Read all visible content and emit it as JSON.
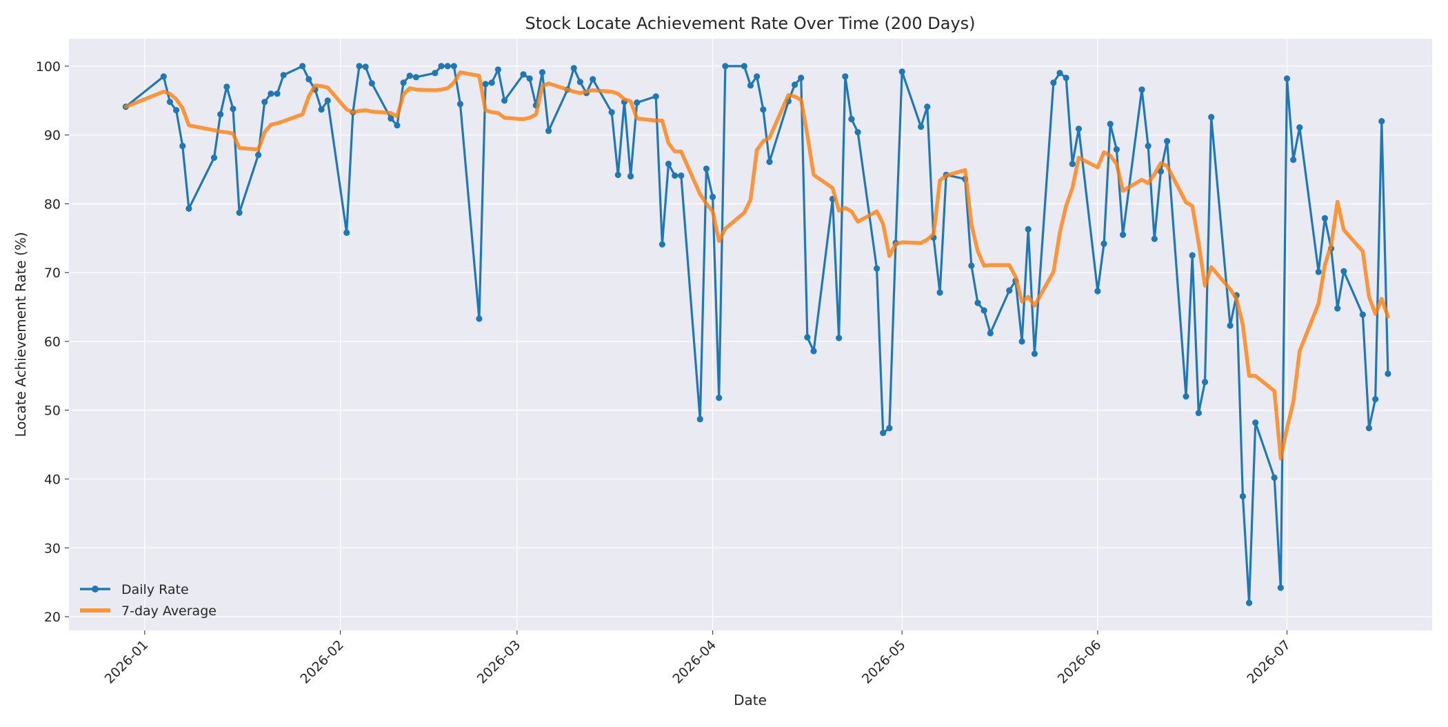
{
  "chart_data": {
    "type": "line",
    "title": "Stock Locate Achievement Rate Over Time (200 Days)",
    "xlabel": "Date",
    "ylabel": "Locate Achievement Rate (%)",
    "x_axis_type": "date",
    "xlim": [
      "2025-12-20",
      "2026-07-24"
    ],
    "ylim": [
      18,
      104
    ],
    "x_ticks": [
      {
        "date": "2026-01-01",
        "label": "2026-01"
      },
      {
        "date": "2026-02-01",
        "label": "2026-02"
      },
      {
        "date": "2026-03-01",
        "label": "2026-03"
      },
      {
        "date": "2026-04-01",
        "label": "2026-04"
      },
      {
        "date": "2026-05-01",
        "label": "2026-05"
      },
      {
        "date": "2026-06-01",
        "label": "2026-06"
      },
      {
        "date": "2026-07-01",
        "label": "2026-07"
      }
    ],
    "y_ticks": [
      20,
      30,
      40,
      50,
      60,
      70,
      80,
      90,
      100
    ],
    "grid": true,
    "legend_position": "lower-left",
    "series": [
      {
        "name": "Daily Rate",
        "color": "#1f77b4",
        "marker": "circle",
        "x": [
          "2025-12-29",
          "2026-01-04",
          "2026-01-05",
          "2026-01-06",
          "2026-01-07",
          "2026-01-08",
          "2026-01-12",
          "2026-01-13",
          "2026-01-14",
          "2026-01-15",
          "2026-01-16",
          "2026-01-19",
          "2026-01-20",
          "2026-01-21",
          "2026-01-22",
          "2026-01-23",
          "2026-01-26",
          "2026-01-27",
          "2026-01-28",
          "2026-01-29",
          "2026-01-30",
          "2026-02-02",
          "2026-02-03",
          "2026-02-04",
          "2026-02-05",
          "2026-02-06",
          "2026-02-09",
          "2026-02-10",
          "2026-02-11",
          "2026-02-12",
          "2026-02-13",
          "2026-02-16",
          "2026-02-17",
          "2026-02-18",
          "2026-02-19",
          "2026-02-20",
          "2026-02-23",
          "2026-02-24",
          "2026-02-25",
          "2026-02-26",
          "2026-02-27",
          "2026-03-02",
          "2026-03-03",
          "2026-03-04",
          "2026-03-05",
          "2026-03-06",
          "2026-03-09",
          "2026-03-10",
          "2026-03-11",
          "2026-03-12",
          "2026-03-13",
          "2026-03-16",
          "2026-03-17",
          "2026-03-18",
          "2026-03-19",
          "2026-03-20",
          "2026-03-23",
          "2026-03-24",
          "2026-03-25",
          "2026-03-26",
          "2026-03-27",
          "2026-03-30",
          "2026-03-31",
          "2026-04-01",
          "2026-04-02",
          "2026-04-03",
          "2026-04-06",
          "2026-04-07",
          "2026-04-08",
          "2026-04-09",
          "2026-04-10",
          "2026-04-13",
          "2026-04-14",
          "2026-04-15",
          "2026-04-16",
          "2026-04-17",
          "2026-04-20",
          "2026-04-21",
          "2026-04-22",
          "2026-04-23",
          "2026-04-24",
          "2026-04-27",
          "2026-04-28",
          "2026-04-29",
          "2026-04-30",
          "2026-05-01",
          "2026-05-04",
          "2026-05-05",
          "2026-05-06",
          "2026-05-07",
          "2026-05-08",
          "2026-05-11",
          "2026-05-12",
          "2026-05-13",
          "2026-05-14",
          "2026-05-15",
          "2026-05-18",
          "2026-05-19",
          "2026-05-20",
          "2026-05-21",
          "2026-05-22",
          "2026-05-25",
          "2026-05-26",
          "2026-05-27",
          "2026-05-28",
          "2026-05-29",
          "2026-06-01",
          "2026-06-02",
          "2026-06-03",
          "2026-06-04",
          "2026-06-05",
          "2026-06-08",
          "2026-06-09",
          "2026-06-10",
          "2026-06-11",
          "2026-06-12",
          "2026-06-15",
          "2026-06-16",
          "2026-06-17",
          "2026-06-18",
          "2026-06-19",
          "2026-06-22",
          "2026-06-23",
          "2026-06-24",
          "2026-06-25",
          "2026-06-26",
          "2026-06-29",
          "2026-06-30",
          "2026-07-01",
          "2026-07-02",
          "2026-07-03",
          "2026-07-06",
          "2026-07-07",
          "2026-07-08",
          "2026-07-09",
          "2026-07-10",
          "2026-07-13",
          "2026-07-14",
          "2026-07-15",
          "2026-07-16",
          "2026-07-17"
        ],
        "y": [
          94.1,
          98.5,
          94.8,
          93.6,
          88.4,
          79.3,
          86.7,
          93.0,
          97.0,
          93.8,
          78.7,
          87.1,
          94.8,
          96.0,
          96.0,
          98.7,
          100.0,
          98.1,
          96.6,
          93.7,
          95.0,
          75.8,
          93.3,
          100.0,
          99.9,
          97.5,
          92.4,
          91.4,
          97.6,
          98.6,
          98.4,
          99.0,
          100.0,
          100.0,
          100.0,
          94.5,
          63.3,
          97.4,
          97.6,
          99.5,
          95.0,
          98.8,
          98.2,
          94.3,
          99.1,
          90.6,
          96.6,
          99.7,
          97.7,
          96.1,
          98.1,
          93.3,
          84.2,
          94.8,
          84.0,
          94.7,
          95.6,
          74.1,
          85.8,
          84.1,
          84.1,
          48.7,
          85.1,
          81.0,
          51.8,
          100.0,
          100.0,
          97.2,
          98.5,
          93.7,
          86.1,
          94.9,
          97.3,
          98.3,
          60.6,
          58.6,
          80.7,
          60.5,
          98.5,
          92.3,
          90.4,
          70.6,
          46.7,
          47.4,
          74.3,
          99.2,
          91.2,
          94.1,
          75.1,
          67.1,
          84.2,
          83.6,
          71.0,
          65.6,
          64.5,
          61.2,
          67.4,
          68.8,
          60.0,
          76.3,
          58.2,
          97.6,
          99.0,
          98.3,
          85.8,
          90.9,
          67.3,
          74.2,
          91.6,
          87.9,
          75.5,
          96.6,
          88.4,
          74.9,
          84.7,
          89.1,
          52.0,
          72.5,
          49.6,
          54.1,
          92.6,
          62.3,
          66.7,
          37.5,
          22.0,
          48.2,
          40.2,
          24.2,
          98.2,
          86.4,
          91.1,
          70.1,
          77.9,
          73.5,
          64.8,
          70.2,
          63.9,
          47.4,
          51.6,
          92.0,
          55.3
        ]
      },
      {
        "name": "7-day Average",
        "color": "#ff7f0e",
        "marker": "none",
        "x": [
          "2025-12-29",
          "2026-01-04",
          "2026-01-05",
          "2026-01-06",
          "2026-01-07",
          "2026-01-08",
          "2026-01-12",
          "2026-01-13",
          "2026-01-14",
          "2026-01-15",
          "2026-01-16",
          "2026-01-19",
          "2026-01-20",
          "2026-01-21",
          "2026-01-22",
          "2026-01-23",
          "2026-01-26",
          "2026-01-27",
          "2026-01-28",
          "2026-01-29",
          "2026-01-30",
          "2026-02-02",
          "2026-02-03",
          "2026-02-04",
          "2026-02-05",
          "2026-02-06",
          "2026-02-09",
          "2026-02-10",
          "2026-02-11",
          "2026-02-12",
          "2026-02-13",
          "2026-02-16",
          "2026-02-17",
          "2026-02-18",
          "2026-02-19",
          "2026-02-20",
          "2026-02-23",
          "2026-02-24",
          "2026-02-25",
          "2026-02-26",
          "2026-02-27",
          "2026-03-02",
          "2026-03-03",
          "2026-03-04",
          "2026-03-05",
          "2026-03-06",
          "2026-03-09",
          "2026-03-10",
          "2026-03-11",
          "2026-03-12",
          "2026-03-13",
          "2026-03-16",
          "2026-03-17",
          "2026-03-18",
          "2026-03-19",
          "2026-03-20",
          "2026-03-23",
          "2026-03-24",
          "2026-03-25",
          "2026-03-26",
          "2026-03-27",
          "2026-03-30",
          "2026-03-31",
          "2026-04-01",
          "2026-04-02",
          "2026-04-03",
          "2026-04-06",
          "2026-04-07",
          "2026-04-08",
          "2026-04-09",
          "2026-04-10",
          "2026-04-13",
          "2026-04-14",
          "2026-04-15",
          "2026-04-16",
          "2026-04-17",
          "2026-04-20",
          "2026-04-21",
          "2026-04-22",
          "2026-04-23",
          "2026-04-24",
          "2026-04-27",
          "2026-04-28",
          "2026-04-29",
          "2026-04-30",
          "2026-05-01",
          "2026-05-04",
          "2026-05-05",
          "2026-05-06",
          "2026-05-07",
          "2026-05-08",
          "2026-05-11",
          "2026-05-12",
          "2026-05-13",
          "2026-05-14",
          "2026-05-15",
          "2026-05-18",
          "2026-05-19",
          "2026-05-20",
          "2026-05-21",
          "2026-05-22",
          "2026-05-25",
          "2026-05-26",
          "2026-05-27",
          "2026-05-28",
          "2026-05-29",
          "2026-06-01",
          "2026-06-02",
          "2026-06-03",
          "2026-06-04",
          "2026-06-05",
          "2026-06-08",
          "2026-06-09",
          "2026-06-10",
          "2026-06-11",
          "2026-06-12",
          "2026-06-15",
          "2026-06-16",
          "2026-06-17",
          "2026-06-18",
          "2026-06-19",
          "2026-06-22",
          "2026-06-23",
          "2026-06-24",
          "2026-06-25",
          "2026-06-26",
          "2026-06-29",
          "2026-06-30",
          "2026-07-01",
          "2026-07-02",
          "2026-07-03",
          "2026-07-06",
          "2026-07-07",
          "2026-07-08",
          "2026-07-09",
          "2026-07-10",
          "2026-07-13",
          "2026-07-14",
          "2026-07-15",
          "2026-07-16",
          "2026-07-17"
        ],
        "y": [
          94.1,
          96.3,
          96.0,
          95.2,
          93.9,
          91.4,
          90.7,
          90.5,
          90.4,
          90.2,
          88.1,
          87.9,
          90.4,
          91.5,
          91.7,
          92.0,
          93.0,
          95.6,
          97.2,
          97.1,
          96.9,
          93.7,
          93.3,
          93.5,
          93.6,
          93.4,
          93.2,
          92.7,
          95.9,
          96.8,
          96.6,
          96.5,
          96.6,
          96.8,
          97.6,
          99.1,
          98.6,
          93.6,
          93.3,
          93.2,
          92.5,
          92.3,
          92.5,
          93.0,
          97.1,
          97.5,
          96.6,
          96.3,
          96.1,
          96.3,
          96.5,
          96.3,
          96.0,
          95.2,
          94.9,
          92.4,
          92.1,
          92.1,
          88.8,
          87.6,
          87.6,
          81.4,
          80.0,
          78.9,
          74.6,
          76.4,
          78.7,
          80.6,
          87.8,
          89.1,
          89.6,
          95.8,
          95.6,
          95.1,
          90.0,
          84.2,
          82.3,
          79.0,
          79.4,
          78.9,
          77.4,
          78.9,
          77.1,
          72.4,
          74.2,
          74.4,
          74.3,
          74.8,
          75.6,
          83.4,
          84.1,
          84.9,
          77.0,
          73.1,
          71.0,
          71.1,
          71.1,
          69.4,
          65.8,
          66.5,
          65.2,
          70.1,
          75.8,
          79.7,
          82.3,
          86.7,
          85.3,
          87.5,
          87.0,
          85.8,
          81.9,
          83.5,
          83.0,
          84.3,
          85.9,
          85.5,
          80.2,
          79.7,
          74.3,
          68.1,
          70.8,
          67.6,
          66.2,
          62.4,
          55.0,
          55.0,
          52.8,
          43.0,
          47.4,
          51.2,
          58.6,
          65.5,
          71.1,
          74.0,
          80.3,
          76.2,
          73.1,
          66.5,
          64.0,
          66.2,
          63.6
        ]
      }
    ]
  }
}
